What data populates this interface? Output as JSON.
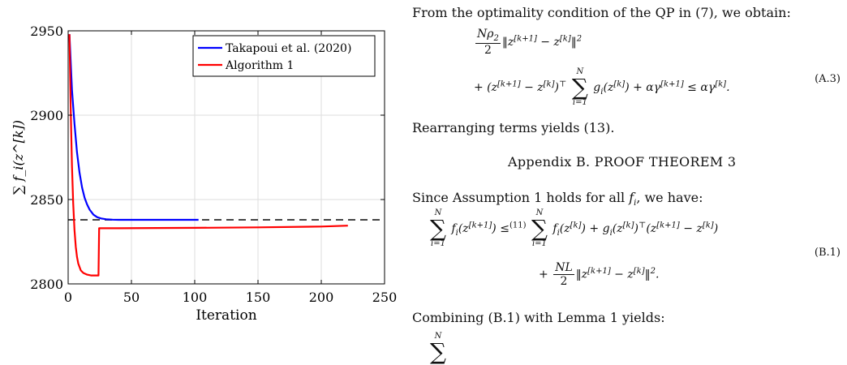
{
  "chart_data": {
    "type": "line",
    "xlabel": "Iteration",
    "ylabel": "∑ f_i(z^[k])",
    "xlim": [
      0,
      250
    ],
    "ylim": [
      2800,
      2950
    ],
    "xticks": [
      "0",
      "50",
      "100",
      "150",
      "200",
      "250"
    ],
    "yticks": [
      "2800",
      "2850",
      "2900",
      "2950"
    ],
    "grid": true,
    "legend_position": "top-right",
    "series": [
      {
        "name": "Takapoui et al. (2020)",
        "color": "#0000ff",
        "x": [
          1,
          3,
          5,
          7,
          9,
          11,
          13,
          15,
          17,
          20,
          23,
          26,
          30,
          35,
          40,
          50,
          60,
          80,
          103
        ],
        "y": [
          2948,
          2915,
          2895,
          2878,
          2866,
          2857,
          2851,
          2847,
          2844,
          2841,
          2839.5,
          2838.8,
          2838.3,
          2838.1,
          2838,
          2838,
          2838,
          2838,
          2838
        ]
      },
      {
        "name": "Algorithm 1",
        "color": "#ff0000",
        "x": [
          1,
          2,
          3,
          4,
          5,
          6,
          7,
          8,
          10,
          12,
          15,
          18,
          20,
          24,
          24.5,
          40,
          100,
          150,
          200,
          221
        ],
        "y": [
          2948,
          2905,
          2870,
          2848,
          2832,
          2822,
          2816,
          2812,
          2808,
          2806.5,
          2805.5,
          2805,
          2805,
          2805,
          2833,
          2833,
          2833.2,
          2833.5,
          2834,
          2834.5
        ]
      }
    ],
    "reference_line": {
      "y": 2838,
      "color": "#444444",
      "style": "dashed"
    }
  },
  "text": {
    "intro": "From the optimality condition of the QP in (7), we obtain:",
    "eq_a3_no": "(A.3)",
    "rearranging": "Rearranging terms yields (13).",
    "appendix_heading": "Appendix B. PROOF THEOREM 3",
    "since": "Since Assumption 1 holds for all",
    "we_have": ", we have:",
    "eq_b1_no": "(B.1)",
    "combining": "Combining (B.1) with Lemma 1 yields:"
  }
}
